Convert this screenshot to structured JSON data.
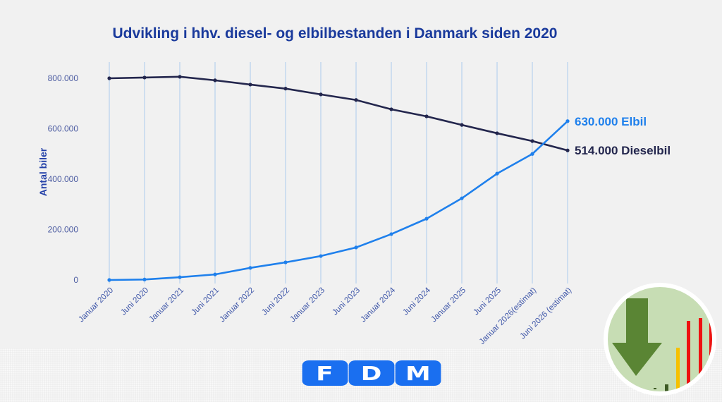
{
  "chart_data": {
    "type": "line",
    "title": "Udvikling i hhv. diesel- og elbilbestanden i Danmark siden 2020",
    "xlabel": "",
    "ylabel": "Antal biler",
    "ylim": [
      0,
      800000
    ],
    "yticks": [
      0,
      200000,
      400000,
      600000,
      800000
    ],
    "ytick_labels": [
      "0",
      "200.000",
      "400.000",
      "600.000",
      "800.000"
    ],
    "grid": "vertical",
    "categories": [
      "Januar 2020",
      "Juni 2020",
      "Januar 2021",
      "Juni 2021",
      "Januar 2022",
      "Juni 2022",
      "Januar 2023",
      "Juni 2023",
      "Januar 2024",
      "Juni 2024",
      "Januar 2025",
      "Juni 2025",
      "Januar 2026(estimat)",
      "Juni 2026 (estimat)"
    ],
    "series": [
      {
        "name": "Dieselbil",
        "color": "#23264d",
        "values": [
          800000,
          803000,
          806000,
          792000,
          775000,
          759000,
          736000,
          714000,
          677000,
          649000,
          615000,
          582000,
          551000,
          514000
        ],
        "end_label": "514.000 Dieselbil"
      },
      {
        "name": "Elbil",
        "color": "#1f80ec",
        "values": [
          0,
          2000,
          11000,
          22000,
          48000,
          70000,
          95000,
          129000,
          182000,
          243000,
          324000,
          422000,
          500000,
          630000
        ],
        "end_label": "630.000 Elbil"
      }
    ],
    "legend": "end-of-line labels, right"
  },
  "logo": {
    "letters": [
      "F",
      "D",
      "M"
    ]
  }
}
